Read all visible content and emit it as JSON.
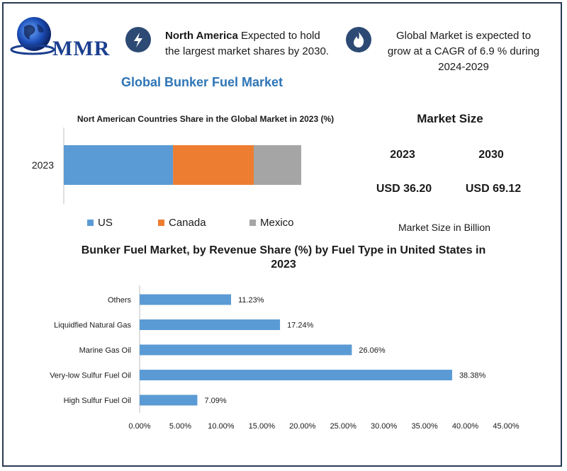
{
  "logo": {
    "text": "MMR"
  },
  "info_left": {
    "strong": "North America",
    "rest": " Expected to hold the largest market shares by 2030."
  },
  "info_right": {
    "text": "Global Market is expected to grow at a CAGR of 6.9 % during 2024-2029"
  },
  "main_title": "Global Bunker Fuel Market",
  "market_size": {
    "heading": "Market Size",
    "year1": "2023",
    "year2": "2030",
    "value1": "USD 36.20",
    "value2": "USD 69.12",
    "note": "Market Size in Billion"
  },
  "colors": {
    "us": "#5b9bd5",
    "canada": "#ed7d31",
    "mexico": "#a5a5a5",
    "bar": "#5b9bd5",
    "accent": "#2e75b6",
    "frame": "#2b3a55"
  },
  "icons": {
    "left": "lightning-icon",
    "right": "flame-icon"
  },
  "chart_data": [
    {
      "type": "bar",
      "orientation": "horizontal-stacked",
      "title": "Nort American Countries Share in the Global Market in 2023 (%)",
      "categories": [
        "2023"
      ],
      "series": [
        {
          "name": "US",
          "values": [
            46
          ]
        },
        {
          "name": "Canada",
          "values": [
            34
          ]
        },
        {
          "name": "Mexico",
          "values": [
            20
          ]
        }
      ],
      "legend": "bottom"
    },
    {
      "type": "bar",
      "orientation": "horizontal",
      "title": "Bunker Fuel Market, by Revenue Share (%) by Fuel Type in United States in 2023",
      "categories": [
        "Others",
        "Liquidfied Natural Gas",
        "Marine Gas Oil",
        "Very-low Sulfur Fuel Oil",
        "High Sulfur Fuel Oil"
      ],
      "values": [
        11.23,
        17.24,
        26.06,
        38.38,
        7.09
      ],
      "value_labels": [
        "11.23%",
        "17.24%",
        "26.06%",
        "38.38%",
        "7.09%"
      ],
      "x_ticks": [
        "0.00%",
        "5.00%",
        "10.00%",
        "15.00%",
        "20.00%",
        "25.00%",
        "30.00%",
        "35.00%",
        "40.00%",
        "45.00%"
      ],
      "xlim": [
        0,
        45
      ],
      "grid": false
    }
  ]
}
